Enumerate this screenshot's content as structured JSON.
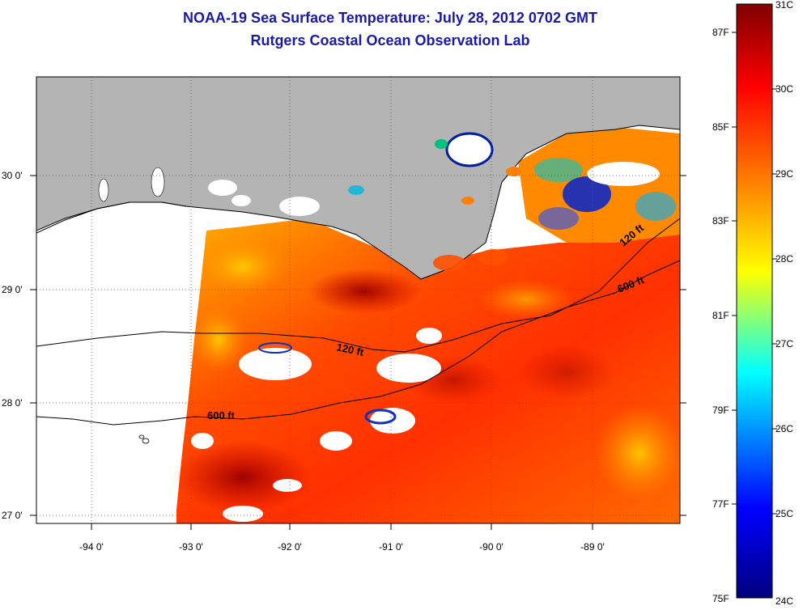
{
  "title": {
    "line1": "NOAA-19 Sea Surface Temperature:  July 28, 2012 0702 GMT",
    "line2": "Rutgers Coastal Ocean Observation Lab"
  },
  "map": {
    "lat_ticks": [
      "30 0'",
      "29 0'",
      "28 0'",
      "27 0'"
    ],
    "lon_ticks": [
      "-94 0'",
      "-93 0'",
      "-92 0'",
      "-91 0'",
      "-90 0'",
      "-89 0'"
    ],
    "contour_labels": [
      "120 ft",
      "120 ft",
      "600 ft",
      "600 ft"
    ],
    "land_color": "#b4b4b4",
    "no_data_color": "#ffffff"
  },
  "colorbar": {
    "celsius": [
      "31C",
      "30C",
      "29C",
      "28C",
      "27C",
      "26C",
      "25C",
      "24C"
    ],
    "fahrenheit": [
      "87F",
      "85F",
      "83F",
      "81F",
      "79F",
      "77F",
      "75F"
    ],
    "colors": [
      "#7f0000",
      "#ff0000",
      "#ff8000",
      "#ffff00",
      "#00ffff",
      "#0000ff",
      "#00007f"
    ]
  }
}
